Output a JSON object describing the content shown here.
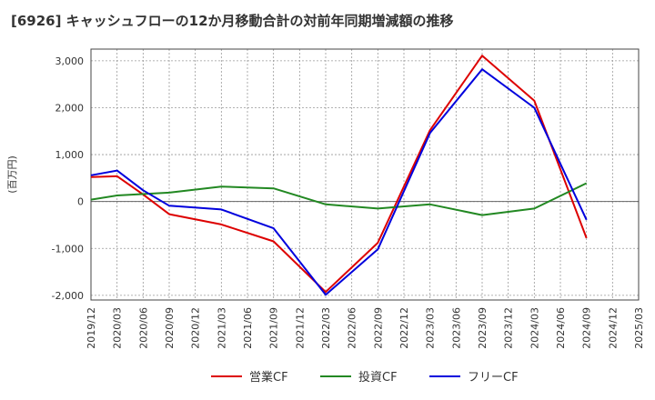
{
  "chart_data": {
    "type": "line",
    "title": "[6926]  キャッシュフローの12か月移動合計の対前年同期増減額の推移",
    "ylabel": "(百万円)",
    "xlabel": "",
    "ylim": [
      -2100,
      3250
    ],
    "yticks": [
      -2000,
      -1000,
      0,
      1000,
      2000,
      3000
    ],
    "ytick_labels": [
      "-2,000",
      "-1,000",
      "0",
      "1,000",
      "2,000",
      "3,000"
    ],
    "x": [
      "2019/12",
      "2020/03",
      "2020/06",
      "2020/09",
      "2020/12",
      "2021/03",
      "2021/06",
      "2021/09",
      "2021/12",
      "2022/03",
      "2022/06",
      "2022/09",
      "2022/12",
      "2023/03",
      "2023/06",
      "2023/09",
      "2023/12",
      "2024/03",
      "2024/06",
      "2024/09",
      "2024/12",
      "2025/03"
    ],
    "grid": true,
    "legend_position": "bottom",
    "series": [
      {
        "name": "営業CF",
        "color": "#dd0000",
        "values": [
          520,
          540,
          150,
          -270,
          null,
          -490,
          null,
          -850,
          null,
          -1930,
          null,
          -880,
          null,
          1520,
          null,
          3110,
          null,
          2150,
          null,
          -780,
          null,
          null
        ]
      },
      {
        "name": "投資CF",
        "color": "#228822",
        "values": [
          40,
          130,
          null,
          190,
          null,
          320,
          null,
          280,
          null,
          -60,
          null,
          -150,
          null,
          -60,
          null,
          -290,
          null,
          -150,
          null,
          390,
          null,
          null
        ]
      },
      {
        "name": "フリーCF",
        "color": "#0000dd",
        "values": [
          560,
          660,
          240,
          -90,
          null,
          -170,
          null,
          -570,
          null,
          -1990,
          null,
          -1020,
          null,
          1460,
          null,
          2820,
          null,
          2000,
          null,
          -390,
          null,
          null
        ]
      }
    ]
  }
}
